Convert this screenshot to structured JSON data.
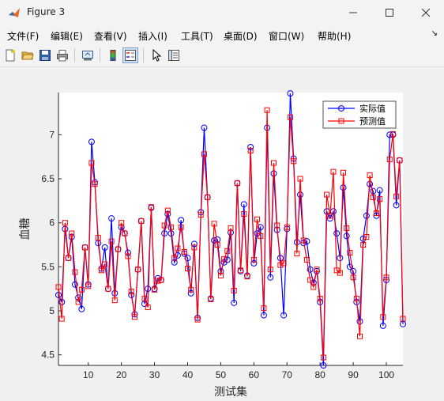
{
  "window": {
    "title": "Figure 3"
  },
  "menu": [
    "文件(F)",
    "编辑(E)",
    "查看(V)",
    "插入(I)",
    "工具(T)",
    "桌面(D)",
    "窗口(W)",
    "帮助(H)"
  ],
  "toolbar_icons": [
    "new-file-icon",
    "open-folder-icon",
    "save-icon",
    "print-icon",
    "export-icon",
    "colorbar-icon",
    "legend-icon",
    "pointer-icon",
    "property-editor-icon"
  ],
  "colors": {
    "actual": "#0000ff",
    "predicted": "#ff0000"
  },
  "chart_data": {
    "type": "line",
    "xlabel": "测试集",
    "ylabel": "血糖",
    "xlim": [
      1,
      105
    ],
    "ylim": [
      4.38,
      7.48
    ],
    "xticks": [
      10,
      20,
      30,
      40,
      50,
      60,
      70,
      80,
      90,
      100
    ],
    "yticks": [
      4.5,
      5,
      5.5,
      6,
      6.5,
      7
    ],
    "legend_position": "top-right",
    "series": [
      {
        "name": "实际值",
        "marker": "circle",
        "values": [
          5.18,
          5.1,
          5.93,
          5.6,
          5.84,
          5.3,
          5.15,
          5.02,
          5.72,
          5.3,
          6.92,
          6.46,
          5.77,
          5.48,
          5.72,
          5.25,
          6.05,
          5.2,
          5.7,
          5.95,
          5.88,
          5.66,
          5.18,
          4.96,
          5.47,
          6.02,
          5.08,
          5.25,
          6.17,
          5.25,
          5.37,
          5.35,
          5.88,
          6.1,
          5.88,
          5.55,
          5.63,
          6.03,
          5.65,
          5.6,
          5.2,
          5.76,
          4.92,
          6.12,
          7.08,
          6.29,
          5.14,
          5.8,
          5.81,
          5.45,
          5.55,
          5.58,
          5.89,
          5.09,
          6.45,
          5.45,
          6.21,
          5.4,
          6.86,
          5.54,
          5.88,
          5.95,
          4.95,
          7.08,
          5.38,
          6.56,
          5.92,
          5.6,
          4.95,
          5.93,
          7.47,
          6.73,
          5.78,
          6.32,
          5.77,
          5.79,
          5.47,
          5.32,
          5.45,
          5.1,
          4.38,
          6.13,
          6.05,
          6.13,
          5.88,
          5.6,
          6.4,
          5.85,
          5.5,
          5.45,
          5.1,
          4.88,
          5.82,
          6.08,
          6.44,
          6.36,
          6.08,
          6.37,
          4.83,
          5.35,
          7.0,
          7.0,
          6.2,
          6.71,
          4.85
        ]
      },
      {
        "name": "预测值",
        "marker": "square",
        "values": [
          5.27,
          4.91,
          6.0,
          5.6,
          5.88,
          5.44,
          5.1,
          5.24,
          5.72,
          5.28,
          6.68,
          6.44,
          5.83,
          5.46,
          5.53,
          5.25,
          5.79,
          5.12,
          5.7,
          6.0,
          5.88,
          5.62,
          5.22,
          4.93,
          5.47,
          6.02,
          5.14,
          5.04,
          6.18,
          5.24,
          5.34,
          5.35,
          5.97,
          6.14,
          5.95,
          5.6,
          5.71,
          5.95,
          5.67,
          5.48,
          5.24,
          5.72,
          4.9,
          6.09,
          6.78,
          6.29,
          5.13,
          5.99,
          5.75,
          5.4,
          5.59,
          5.68,
          5.94,
          5.23,
          6.45,
          5.46,
          6.1,
          5.39,
          6.82,
          5.58,
          6.04,
          5.85,
          5.03,
          7.28,
          5.47,
          6.68,
          5.97,
          5.52,
          5.54,
          5.95,
          7.2,
          6.7,
          5.65,
          6.5,
          5.8,
          5.58,
          5.35,
          5.27,
          5.47,
          5.14,
          4.47,
          6.32,
          6.08,
          6.58,
          5.46,
          5.43,
          6.57,
          5.94,
          5.66,
          5.38,
          5.14,
          4.71,
          5.75,
          5.84,
          6.54,
          6.29,
          6.11,
          6.27,
          4.93,
          5.38,
          6.72,
          7.01,
          6.3,
          6.71,
          4.91
        ]
      }
    ]
  }
}
